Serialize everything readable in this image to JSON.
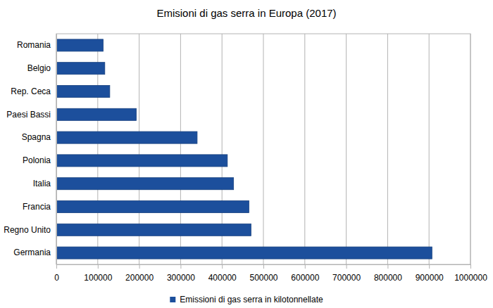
{
  "chart_data": {
    "type": "bar",
    "orientation": "horizontal",
    "title": "Emisioni di gas serra in Europa (2017)",
    "categories": [
      "Romania",
      "Belgio",
      "Rep. Ceca",
      "Paesi Bassi",
      "Spagna",
      "Polonia",
      "Italia",
      "Francia",
      "Regno Unito",
      "Germania"
    ],
    "series": [
      {
        "name": "Emissioni di gas serra in kilotonnellate",
        "color": "#1c4f9c",
        "values": [
          113000,
          117000,
          129000,
          193000,
          340000,
          413000,
          428000,
          465000,
          470000,
          907000
        ]
      }
    ],
    "xlim": [
      0,
      1000000
    ],
    "xticks": [
      0,
      100000,
      200000,
      300000,
      400000,
      500000,
      600000,
      700000,
      800000,
      900000,
      1000000
    ],
    "grid": true,
    "legend": "bottom"
  }
}
